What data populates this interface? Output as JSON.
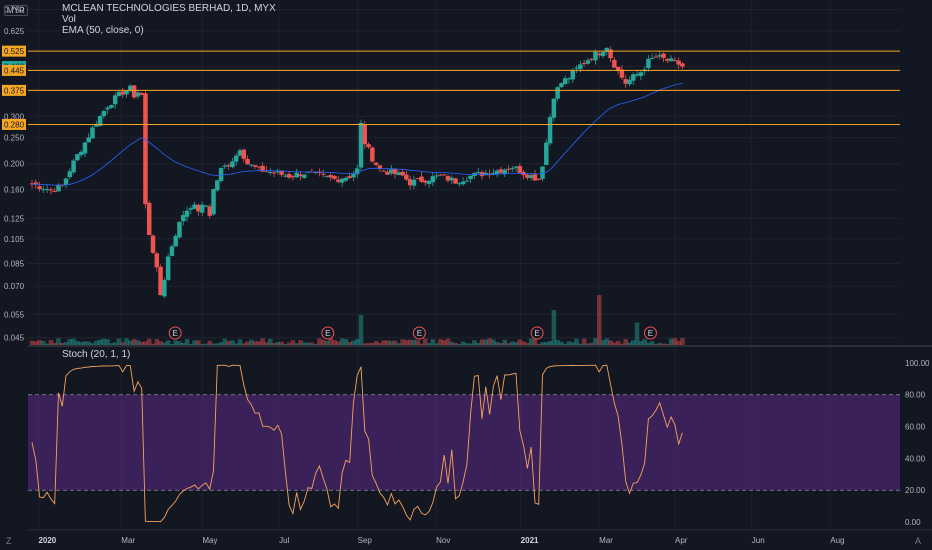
{
  "legend": {
    "title": "MCLEAN TECHNOLOGIES BERHAD, 1D, MYX",
    "vol_label": "Vol",
    "ema_label": "EMA (50, close, 0)"
  },
  "currency": "MYR",
  "stoch_label": "Stoch (20, 1, 1)",
  "corner_left": "Z",
  "corner_right": "A",
  "colors": {
    "background": "#131722",
    "up": "#26a69a",
    "down": "#ef5350",
    "ema": "#2962ff",
    "hline": "#f5a623",
    "stoch_line": "#f7a35c",
    "stoch_band": "#5b2a86"
  },
  "chart_data": [
    {
      "type": "candlestick",
      "title": "MCLEAN TECHNOLOGIES BERHAD, 1D, MYX",
      "y_scale": "log",
      "ylim": [
        0.043,
        0.8
      ],
      "x_tick_labels": [
        "2020",
        "Mar",
        "May",
        "Jul",
        "Sep",
        "Nov",
        "2021",
        "Mar",
        "Apr",
        "Jun",
        "Aug"
      ],
      "y_tick_labels": [
        "0.750",
        "0.625",
        "0.525",
        "0.460",
        "0.445",
        "0.375",
        "0.300",
        "0.280",
        "0.250",
        "0.200",
        "0.160",
        "0.125",
        "0.105",
        "0.085",
        "0.070",
        "0.055",
        "0.045"
      ],
      "highlighted_labels": [
        {
          "value": 0.525,
          "label": "0.525",
          "kind": "line"
        },
        {
          "value": 0.46,
          "label": "0.460",
          "kind": "last-price"
        },
        {
          "value": 0.445,
          "label": "0.445",
          "kind": "line"
        },
        {
          "value": 0.375,
          "label": "0.375",
          "kind": "line"
        },
        {
          "value": 0.28,
          "label": "0.280",
          "kind": "line"
        }
      ],
      "horizontal_lines": [
        0.525,
        0.445,
        0.375,
        0.28
      ],
      "last_price": 0.46,
      "close_path": [
        [
          0,
          0.168
        ],
        [
          5,
          0.16
        ],
        [
          8,
          0.165
        ],
        [
          10,
          0.19
        ],
        [
          12,
          0.215
        ],
        [
          14,
          0.24
        ],
        [
          16,
          0.27
        ],
        [
          18,
          0.3
        ],
        [
          20,
          0.33
        ],
        [
          22,
          0.35
        ],
        [
          24,
          0.37
        ],
        [
          26,
          0.38
        ],
        [
          27,
          0.36
        ],
        [
          28,
          0.37
        ],
        [
          29,
          0.36
        ],
        [
          30,
          0.14
        ],
        [
          31,
          0.11
        ],
        [
          32,
          0.095
        ],
        [
          33,
          0.08
        ],
        [
          34,
          0.065
        ],
        [
          35,
          0.075
        ],
        [
          36,
          0.09
        ],
        [
          38,
          0.11
        ],
        [
          40,
          0.13
        ],
        [
          42,
          0.14
        ],
        [
          44,
          0.135
        ],
        [
          46,
          0.14
        ],
        [
          47,
          0.13
        ],
        [
          48,
          0.16
        ],
        [
          50,
          0.19
        ],
        [
          52,
          0.2
        ],
        [
          54,
          0.215
        ],
        [
          55,
          0.23
        ],
        [
          57,
          0.2
        ],
        [
          60,
          0.19
        ],
        [
          64,
          0.185
        ],
        [
          68,
          0.18
        ],
        [
          72,
          0.185
        ],
        [
          76,
          0.18
        ],
        [
          80,
          0.175
        ],
        [
          84,
          0.18
        ],
        [
          86,
          0.19
        ],
        [
          87,
          0.28
        ],
        [
          88,
          0.24
        ],
        [
          90,
          0.21
        ],
        [
          92,
          0.19
        ],
        [
          95,
          0.185
        ],
        [
          98,
          0.18
        ],
        [
          100,
          0.17
        ],
        [
          104,
          0.175
        ],
        [
          108,
          0.18
        ],
        [
          112,
          0.172
        ],
        [
          116,
          0.18
        ],
        [
          120,
          0.185
        ],
        [
          124,
          0.19
        ],
        [
          127,
          0.195
        ],
        [
          130,
          0.185
        ],
        [
          132,
          0.18
        ],
        [
          134,
          0.175
        ],
        [
          135,
          0.2
        ],
        [
          136,
          0.24
        ],
        [
          137,
          0.3
        ],
        [
          138,
          0.36
        ],
        [
          140,
          0.4
        ],
        [
          142,
          0.42
        ],
        [
          144,
          0.45
        ],
        [
          146,
          0.48
        ],
        [
          148,
          0.5
        ],
        [
          150,
          0.52
        ],
        [
          152,
          0.55
        ],
        [
          153,
          0.5
        ],
        [
          155,
          0.44
        ],
        [
          157,
          0.4
        ],
        [
          159,
          0.42
        ],
        [
          161,
          0.44
        ],
        [
          163,
          0.48
        ],
        [
          165,
          0.5
        ],
        [
          167,
          0.49
        ],
        [
          169,
          0.48
        ],
        [
          171,
          0.47
        ],
        [
          172,
          0.46
        ]
      ],
      "volume_spikes": [
        {
          "bar": 87,
          "relative": 0.6
        },
        {
          "bar": 138,
          "relative": 0.7
        },
        {
          "bar": 150,
          "relative": 1.0
        },
        {
          "bar": 160,
          "relative": 0.45
        }
      ],
      "earnings_markers": [
        {
          "label": "E",
          "x_fraction": 0.1
        },
        {
          "label": "E",
          "x_fraction": 0.275
        },
        {
          "label": "E",
          "x_fraction": 0.38
        },
        {
          "label": "E",
          "x_fraction": 0.515
        },
        {
          "label": "E",
          "x_fraction": 0.645
        }
      ],
      "volume_label": "Vol",
      "ema_label": "EMA (50, close, 0)",
      "ema_period": 50
    },
    {
      "type": "line",
      "title": "Stoch (20, 1, 1)",
      "ylim": [
        -5,
        110
      ],
      "y_tick_labels": [
        "100.00",
        "80.00",
        "60.00",
        "40.00",
        "20.00",
        "0.00"
      ],
      "band": [
        20,
        80
      ],
      "x_tick_labels": [
        "2020",
        "Mar",
        "May",
        "Jul",
        "Sep",
        "Nov",
        "2021",
        "Mar",
        "Apr",
        "Jun",
        "Aug"
      ]
    }
  ]
}
